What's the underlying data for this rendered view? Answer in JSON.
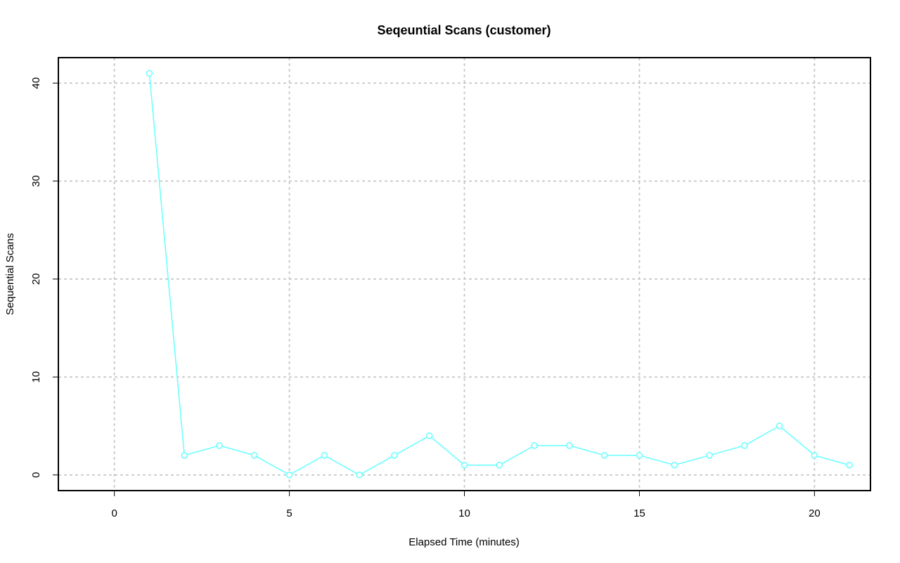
{
  "chart_data": {
    "type": "line",
    "title": "Seqeuntial Scans (customer)",
    "xlabel": "Elapsed Time (minutes)",
    "ylabel": "Sequential Scans",
    "xlim": [
      -1.6,
      21.6
    ],
    "ylim": [
      -1.6,
      42.6
    ],
    "xticks": [
      0,
      5,
      10,
      15,
      20
    ],
    "yticks": [
      0,
      10,
      20,
      30,
      40
    ],
    "grid": true,
    "series": [
      {
        "color": "#66ffff",
        "marker": "circle",
        "x": [
          1,
          2,
          3,
          4,
          5,
          6,
          7,
          8,
          9,
          10,
          11,
          12,
          13,
          14,
          15,
          16,
          17,
          18,
          19,
          20,
          21
        ],
        "values": [
          41,
          2,
          3,
          2,
          0,
          2,
          0,
          2,
          4,
          1,
          1,
          3,
          3,
          2,
          2,
          1,
          2,
          3,
          5,
          2,
          1
        ]
      }
    ]
  }
}
